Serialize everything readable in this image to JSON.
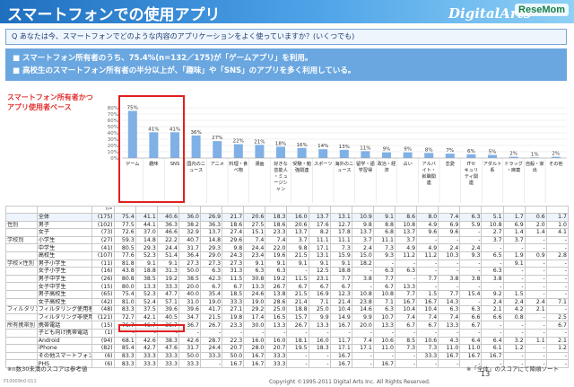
{
  "header": {
    "title": "スマートフォンでの使用アプリ",
    "logo": "DigitalArts",
    "watermark": "ReseMom"
  },
  "question": "Q あなたは今、スマートフォンでどのような内容のアプリケーションをよく使っていますか？(いくつでも)",
  "bullets": [
    "■ スマートフォン所有者のうち、75.4%(n=132／175)が「ゲームアプリ」を利用。",
    "■ 高校生のスマートフォン所有者の半分以上が、「趣味」や「SNS」のアプリを多く利用している。"
  ],
  "chart_note": [
    "スマートフォン所有者かつ",
    "アプリ使用者ベース"
  ],
  "chart_data": {
    "type": "bar",
    "categories": [
      "ゲーム",
      "趣味",
      "SNS",
      "国内のニュース",
      "アニメ",
      "料理・食べ物",
      "漫画",
      "好きな芸能人・ミュージシャン",
      "受験・勉強関連",
      "スポーツ",
      "海外のニュース",
      "留学・語学習得",
      "政治・経済",
      "占い",
      "アルバイト・就職関連",
      "恋愛",
      "ITセキュリティ関連",
      "アダルト系",
      "ドラッグ・麻薬",
      "自殺・家出",
      "その他"
    ],
    "values": [
      75,
      41,
      41,
      36,
      27,
      22,
      21,
      18,
      16,
      14,
      13,
      11,
      9,
      9,
      8,
      7,
      6,
      5,
      2,
      1,
      2
    ],
    "value_labels": [
      "75%",
      "41%",
      "41%",
      "36%",
      "27%",
      "22%",
      "21%",
      "18%",
      "16%",
      "14%",
      "13%",
      "11%",
      "9%",
      "9%",
      "8%",
      "7%",
      "6%",
      "5%",
      "2%",
      "1%",
      "2%"
    ],
    "yticks": [
      "80%",
      "70%",
      "60%",
      "50%",
      "40%",
      "30%",
      "20%",
      "10%",
      "0%"
    ],
    "ylim": [
      0,
      80
    ],
    "bar_color": "#7fb0e6"
  },
  "table": {
    "n_label": "n=",
    "rows": [
      {
        "group": "",
        "label": "全体",
        "n": "(175)",
        "vals": [
          "75.4",
          "41.1",
          "40.6",
          "36.0",
          "26.9",
          "21.7",
          "20.6",
          "18.3",
          "16.0",
          "13.7",
          "13.1",
          "10.9",
          "9.1",
          "8.6",
          "8.0",
          "7.4",
          "6.3",
          "5.1",
          "1.7",
          "0.6",
          "1.7"
        ],
        "total": true
      },
      {
        "group": "性別",
        "label": "男子",
        "n": "(102)",
        "vals": [
          "77.5",
          "44.1",
          "36.3",
          "38.2",
          "36.3",
          "18.6",
          "27.5",
          "18.6",
          "20.6",
          "17.6",
          "12.7",
          "9.8",
          "8.8",
          "10.8",
          "4.9",
          "6.9",
          "5.9",
          "10.8",
          "6.9",
          "2.0",
          "1.0"
        ]
      },
      {
        "group": "",
        "label": "女子",
        "n": "(73)",
        "vals": [
          "72.6",
          "37.0",
          "46.6",
          "32.9",
          "13.7",
          "27.4",
          "15.1",
          "23.3",
          "13.7",
          "8.2",
          "17.8",
          "13.7",
          "6.8",
          "13.7",
          "9.6",
          "9.6",
          "-",
          "2.7",
          "1.4",
          "1.4",
          "4.1"
        ]
      },
      {
        "group": "学校別",
        "label": "小学生",
        "n": "(27)",
        "vals": [
          "59.3",
          "14.8",
          "22.2",
          "40.7",
          "14.8",
          "29.6",
          "7.4",
          "7.4",
          "3.7",
          "11.1",
          "11.1",
          "3.7",
          "11.1",
          "3.7",
          "-",
          "-",
          "-",
          "3.7",
          "3.7",
          "-",
          "-"
        ]
      },
      {
        "group": "",
        "label": "中学生",
        "n": "(41)",
        "vals": [
          "80.5",
          "29.3",
          "24.4",
          "31.7",
          "29.3",
          "9.8",
          "24.4",
          "22.0",
          "9.8",
          "17.1",
          "7.3",
          "2.4",
          "7.3",
          "4.9",
          "4.9",
          "2.4",
          "2.4",
          "-",
          "-",
          "-",
          "-"
        ]
      },
      {
        "group": "",
        "label": "高校生",
        "n": "(107)",
        "vals": [
          "77.6",
          "52.3",
          "51.4",
          "36.4",
          "29.0",
          "24.3",
          "23.4",
          "19.6",
          "21.5",
          "13.1",
          "15.9",
          "15.0",
          "9.3",
          "11.2",
          "11.2",
          "10.3",
          "9.3",
          "6.5",
          "1.9",
          "0.9",
          "2.8"
        ]
      },
      {
        "group": "学校×性別",
        "label": "男子小学生",
        "n": "(11)",
        "vals": [
          "81.8",
          "9.1",
          "9.1",
          "27.3",
          "27.3",
          "27.3",
          "9.1",
          "9.1",
          "9.1",
          "9.1",
          "9.1",
          "18.2",
          "-",
          "-",
          "-",
          "-",
          "-",
          "-",
          "9.1",
          "-",
          "-"
        ]
      },
      {
        "group": "",
        "label": "女子小学生",
        "n": "(16)",
        "vals": [
          "43.8",
          "18.8",
          "31.3",
          "50.0",
          "6.3",
          "31.3",
          "6.3",
          "6.3",
          "-",
          "12.5",
          "18.8",
          "-",
          "6.3",
          "6.3",
          "-",
          "-",
          "-",
          "6.3",
          "-",
          "-",
          "-"
        ]
      },
      {
        "group": "",
        "label": "男子中学生",
        "n": "(26)",
        "vals": [
          "80.8",
          "38.5",
          "19.2",
          "38.5",
          "42.3",
          "11.5",
          "30.8",
          "19.2",
          "11.5",
          "23.1",
          "7.7",
          "3.8",
          "7.7",
          "-",
          "7.7",
          "3.8",
          "3.8",
          "3.8",
          "-",
          "-",
          "-"
        ]
      },
      {
        "group": "",
        "label": "女子中学生",
        "n": "(15)",
        "vals": [
          "80.0",
          "13.3",
          "33.3",
          "20.0",
          "6.7",
          "6.7",
          "13.3",
          "26.7",
          "6.7",
          "6.7",
          "6.7",
          "-",
          "6.7",
          "13.3",
          "-",
          "-",
          "-",
          "-",
          "-",
          "-",
          "-"
        ]
      },
      {
        "group": "",
        "label": "男子高校生",
        "n": "(65)",
        "vals": [
          "75.4",
          "52.3",
          "47.7",
          "40.0",
          "35.4",
          "18.5",
          "24.6",
          "13.8",
          "21.5",
          "16.9",
          "12.3",
          "10.8",
          "10.8",
          "7.7",
          "1.5",
          "7.7",
          "15.4",
          "9.2",
          "1.5",
          "-",
          "-"
        ]
      },
      {
        "group": "",
        "label": "女子高校生",
        "n": "(42)",
        "vals": [
          "81.0",
          "52.4",
          "57.1",
          "31.0",
          "19.0",
          "33.3",
          "19.0",
          "28.6",
          "21.4",
          "7.1",
          "21.4",
          "23.8",
          "7.1",
          "16.7",
          "16.7",
          "14.3",
          "-",
          "2.4",
          "2.4",
          "2.4",
          "7.1"
        ]
      },
      {
        "group": "フィルタリング使用状況",
        "label": "フィルタリング使用者",
        "n": "(48)",
        "vals": [
          "83.3",
          "37.5",
          "39.6",
          "39.6",
          "41.7",
          "27.1",
          "29.2",
          "25.0",
          "18.8",
          "25.0",
          "10.4",
          "14.6",
          "6.3",
          "10.4",
          "10.4",
          "6.3",
          "6.3",
          "2.1",
          "4.2",
          "2.1",
          "-"
        ]
      },
      {
        "group": "",
        "label": "フィルタリング非使用者",
        "n": "(121)",
        "vals": [
          "72.7",
          "42.1",
          "40.5",
          "34.7",
          "21.5",
          "19.8",
          "17.4",
          "16.5",
          "15.7",
          "9.9",
          "14.9",
          "9.9",
          "10.7",
          "7.4",
          "7.4",
          "7.4",
          "6.6",
          "6.6",
          "0.8",
          "-",
          "2.5"
        ]
      },
      {
        "group": "所有携帯別",
        "label": "携帯電話",
        "n": "(15)",
        "vals": [
          "76.7",
          "46.7",
          "36.7",
          "36.7",
          "26.7",
          "23.3",
          "30.0",
          "13.3",
          "26.7",
          "13.3",
          "16.7",
          "20.0",
          "13.3",
          "6.7",
          "6.7",
          "13.3",
          "6.7",
          "-",
          "-",
          "-",
          "6.7"
        ]
      },
      {
        "group": "",
        "label": "子ども向け携帯電話",
        "n": "(1)",
        "vals": [
          "-",
          "-",
          "-",
          "-",
          "-",
          "-",
          "-",
          "-",
          "-",
          "-",
          "-",
          "-",
          "-",
          "-",
          "-",
          "-",
          "-",
          "-",
          "-",
          "-",
          "-"
        ]
      },
      {
        "group": "",
        "label": "Android",
        "n": "(94)",
        "vals": [
          "68.1",
          "42.6",
          "38.3",
          "42.6",
          "28.7",
          "22.3",
          "16.0",
          "16.0",
          "18.1",
          "16.0",
          "11.7",
          "7.4",
          "10.6",
          "8.5",
          "10.6",
          "4.3",
          "6.4",
          "6.4",
          "3.2",
          "1.1",
          "2.1"
        ]
      },
      {
        "group": "",
        "label": "iPhone",
        "n": "(82)",
        "vals": [
          "85.4",
          "42.7",
          "47.6",
          "31.7",
          "24.4",
          "20.7",
          "28.0",
          "20.7",
          "19.5",
          "18.3",
          "17.1",
          "17.1",
          "11.0",
          "7.3",
          "7.3",
          "11.0",
          "11.0",
          "6.1",
          "1.2",
          "-",
          "1.2"
        ]
      },
      {
        "group": "",
        "label": "その他スマートフォン",
        "n": "(6)",
        "vals": [
          "83.3",
          "33.3",
          "33.3",
          "50.0",
          "33.3",
          "50.0",
          "16.7",
          "33.3",
          "-",
          "-",
          "16.7",
          "-",
          "-",
          "-",
          "33.3",
          "16.7",
          "16.7",
          "16.7",
          "-",
          "-",
          "-"
        ]
      },
      {
        "group": "",
        "label": "PHS",
        "n": "(6)",
        "vals": [
          "83.3",
          "33.3",
          "33.3",
          "33.3",
          "-",
          "16.7",
          "16.7",
          "33.3",
          "-",
          "-",
          "16.7",
          "-",
          "16.7",
          "-",
          "-",
          "-",
          "-",
          "-",
          "-",
          "-",
          "-"
        ]
      }
    ]
  },
  "footnote": "※n数30未満のスコアは参考値",
  "footnote2": "※「全体」のスコアにて降順ソート",
  "page_number": "13",
  "copyright": "Copyright ©1995-2011 Digital Arts Inc. All Rights Reserved.",
  "doc_id": "P10009h0-011"
}
